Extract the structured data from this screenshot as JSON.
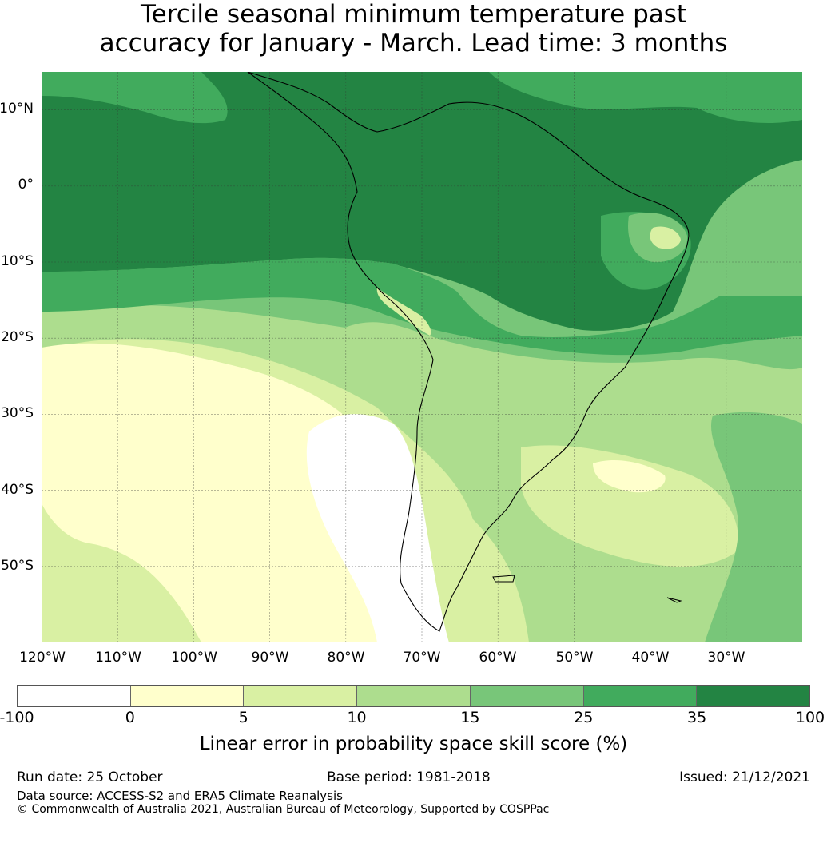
{
  "title": {
    "line1": "Tercile seasonal minimum temperature past",
    "line2": "accuracy for January - March. Lead time: 3 months"
  },
  "map": {
    "lat_labels": [
      "10°N",
      "0°",
      "10°S",
      "20°S",
      "30°S",
      "40°S",
      "50°S"
    ],
    "lon_labels": [
      "120°W",
      "110°W",
      "100°W",
      "90°W",
      "80°W",
      "70°W",
      "60°W",
      "50°W",
      "40°W",
      "30°W"
    ],
    "extent": {
      "lon_min": -120,
      "lon_max": -20,
      "lat_min": -60,
      "lat_max": 15
    }
  },
  "colorbar": {
    "ticks": [
      "-100",
      "0",
      "5",
      "10",
      "15",
      "25",
      "35",
      "100"
    ],
    "colors": [
      "#ffffff",
      "#ffffcc",
      "#d9f0a3",
      "#addd8e",
      "#78c679",
      "#41ab5d",
      "#238443"
    ],
    "label": "Linear error in probability space skill score (%)"
  },
  "footer": {
    "run_date": "Run date: 25 October",
    "base_period": "Base period: 1981-2018",
    "issued": "Issued: 21/12/2021",
    "data_source": "Data source: ACCESS-S2 and ERA5 Climate Reanalysis",
    "copyright": "© Commonwealth of Australia 2021, Australian Bureau of Meteorology, Supported by COSPPac"
  }
}
